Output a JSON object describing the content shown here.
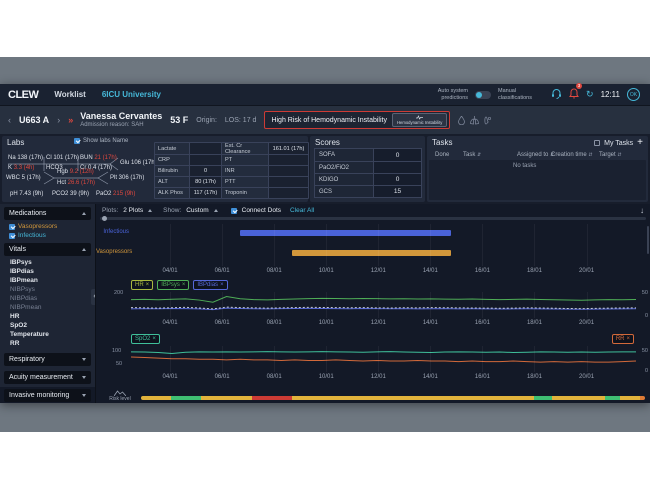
{
  "ui": {
    "close": "×",
    "caret": "^",
    "chev_left": "‹",
    "chev_right": "›",
    "dbl_chev": "»",
    "plus": "+",
    "download": "↓",
    "refresh": "↻",
    "collapse": "‹"
  },
  "navbar": {
    "logo": "CLEW",
    "worklist": "Worklist",
    "unit": "6ICU University",
    "auto_toggle": "Auto system predictions",
    "manual_toggle": "Manual classifications",
    "bell_badge": "3",
    "time": "12:11",
    "avatar": "OK"
  },
  "patient": {
    "bed": "U663 A",
    "name": "Vanessa Cervantes",
    "age_sex": "53 F",
    "admission": "Admission reason: SAH",
    "origin_label": "Origin:",
    "los": "LOS: 17 d",
    "risk_banner": "High Risk of Hemodynamic Instability",
    "risk_button": "Hemodynamic Instability"
  },
  "labs": {
    "title": "Labs",
    "show_labs_label": "Show labs Name",
    "fishbone": {
      "na": "Na 138 (17h)",
      "cl": "Cl 101 (17h)",
      "bun_label": "BUN",
      "bun_value": "21 (17h)",
      "glu": "Glu 106 (17h)",
      "k_label": "K",
      "k_value": "3.3 (4h)",
      "hco3": "HCO3",
      "cr": "Cr 0.4 (17h)",
      "wbc": "WBC 5 (17h)",
      "hgb_label": "Hgb",
      "hgb_value": "9.2 (12h)",
      "hct_label": "Hct",
      "hct_value": "26.6 (17h)",
      "plt": "Plt 306 (17h)",
      "ph": "pH 7.43 (9h)",
      "pco2": "PCO2 39 (9h)",
      "pao2_label": "PaO2",
      "pao2_value": "215 (9h)"
    },
    "table1": [
      {
        "label": "Lactate",
        "value": ""
      },
      {
        "label": "CRP",
        "value": ""
      },
      {
        "label": "Bilirubin",
        "value": "0",
        "cls": "red"
      },
      {
        "label": "ALT",
        "value": "80 (17h)",
        "cls": "red"
      },
      {
        "label": "ALK Phos",
        "value": "117 (17h)"
      }
    ],
    "table2": [
      {
        "label": "Est. Cr Clearance",
        "value": "161.01 (17h)",
        "cls": "red"
      },
      {
        "label": "PT",
        "value": ""
      },
      {
        "label": "INR",
        "value": ""
      },
      {
        "label": "PTT",
        "value": ""
      },
      {
        "label": "Troponin",
        "value": ""
      }
    ]
  },
  "scores": {
    "title": "Scores",
    "rows": [
      {
        "label": "SOFA",
        "value": "0"
      },
      {
        "label": "PaO2/FiO2",
        "value": ""
      },
      {
        "label": "KDIGO",
        "value": "0",
        "cls": "red"
      },
      {
        "label": "GCS",
        "value": "15"
      }
    ]
  },
  "tasks": {
    "title": "Tasks",
    "my_tasks_label": "My Tasks",
    "add_label": "+",
    "columns": [
      {
        "label": "Done"
      },
      {
        "label": "Task",
        "sort": "⇵"
      },
      {
        "label": "Assigned to",
        "sort": "⇵"
      },
      {
        "label": "Creation time",
        "sort": "⇵"
      },
      {
        "label": "Target",
        "sort": "⇵"
      }
    ],
    "empty": "No tasks"
  },
  "sidebar": {
    "medications_label": "Medications",
    "meds": [
      {
        "label": "Vasopressors",
        "cls": "orange"
      },
      {
        "label": "Infectious",
        "cls": "blue"
      }
    ],
    "vitals_label": "Vitals",
    "vitals": [
      {
        "label": "IBPsys"
      },
      {
        "label": "IBPdias"
      },
      {
        "label": "IBPmean"
      },
      {
        "label": "NIBPsys",
        "cls": "dim"
      },
      {
        "label": "NIBPdias",
        "cls": "dim"
      },
      {
        "label": "NIBPmean",
        "cls": "dim"
      },
      {
        "label": "HR"
      },
      {
        "label": "SpO2"
      },
      {
        "label": "Temperature"
      },
      {
        "label": "RR"
      }
    ],
    "collapsed": [
      {
        "label": "Respiratory"
      },
      {
        "label": "Acuity measurement"
      },
      {
        "label": "Invasive monitoring"
      }
    ]
  },
  "toolbar": {
    "plots_label": "Plots:",
    "plots_value": "2 Plots",
    "show_label": "Show:",
    "show_value": "Custom",
    "connect_label": "Connect Dots",
    "clear_label": "Clear All"
  },
  "risk": {
    "label": "Risk level",
    "segments": [
      {
        "color": "#e2b33c",
        "w": 6
      },
      {
        "color": "#3fbf72",
        "w": 6
      },
      {
        "color": "#e2b33c",
        "w": 10
      },
      {
        "color": "#cd3b35",
        "w": 8
      },
      {
        "color": "#e2b33c",
        "w": 48
      },
      {
        "color": "#3fbf72",
        "w": 3.5
      },
      {
        "color": "#e2b33c",
        "w": 10.5
      },
      {
        "color": "#3fbf72",
        "w": 3
      },
      {
        "color": "#e2b33c",
        "w": 4
      },
      {
        "color": "#de7b35",
        "w": 1
      }
    ]
  },
  "chart_data": {
    "type": "multi",
    "domain": {
      "day_min": 2.5,
      "day_max": 21.9
    },
    "x_ticks": [
      {
        "d": 4,
        "label": "04/01"
      },
      {
        "d": 6,
        "label": "06/01"
      },
      {
        "d": 8,
        "label": "08/01"
      },
      {
        "d": 10,
        "label": "10/01"
      },
      {
        "d": 12,
        "label": "12/01"
      },
      {
        "d": 14,
        "label": "14/01"
      },
      {
        "d": 16,
        "label": "16/01"
      },
      {
        "d": 18,
        "label": "18/01"
      },
      {
        "d": 20,
        "label": "20/01"
      }
    ],
    "med_timeline": {
      "type": "timeline",
      "rows": [
        {
          "name": "Infectious",
          "color": "#4a63d8",
          "start_day": 6.7,
          "end_day": 14.8
        },
        {
          "name": "Vasopressors",
          "color": "#d2973b",
          "start_day": 8.7,
          "end_day": 14.8
        }
      ]
    },
    "vitals": {
      "type": "line",
      "y_left": [
        "200"
      ],
      "y_right": [
        "50",
        "0"
      ],
      "chips": [
        {
          "label": "HR",
          "color": "#aab83f"
        },
        {
          "label": "IBPsys",
          "color": "#4fae57"
        },
        {
          "label": "IBPdias",
          "color": "#5668d8"
        }
      ],
      "series": [
        {
          "name": "IBPsys",
          "color": "#4fae57",
          "ylim": [
            0,
            200
          ],
          "values": [
            141,
            143,
            140,
            144,
            147,
            138,
            121,
            165,
            148,
            141,
            139,
            143,
            146,
            149,
            151,
            150,
            148,
            150,
            149,
            147,
            148,
            146,
            147,
            145,
            144,
            146,
            143,
            141,
            143,
            145,
            142,
            140,
            138,
            137,
            139,
            141,
            140,
            142
          ]
        },
        {
          "name": "IBPdias",
          "color": "#5668d8",
          "ylim": [
            0,
            200
          ],
          "values": [
            70,
            72,
            71,
            73,
            72,
            70,
            64,
            76,
            73,
            71,
            70,
            72,
            73,
            74,
            73,
            72,
            71,
            73,
            72,
            71,
            72,
            70,
            71,
            72,
            70,
            71,
            70,
            69,
            70,
            71,
            70,
            69,
            68,
            67,
            68,
            69,
            70,
            71
          ]
        },
        {
          "name": "HR",
          "color": "#c7cbd3",
          "dash": true,
          "ylim": [
            0,
            200
          ],
          "values": [
            80,
            78,
            76,
            79,
            82,
            77,
            70,
            84,
            80,
            78,
            76,
            78,
            80,
            82,
            81,
            80,
            79,
            80,
            78,
            77,
            79,
            78,
            80,
            79,
            78,
            77,
            76,
            75,
            76,
            78,
            77,
            75,
            73,
            72,
            74,
            76,
            77,
            78
          ]
        }
      ]
    },
    "oxy": {
      "type": "line",
      "y_left": [
        "100",
        "50"
      ],
      "y_right": [
        "50",
        "0"
      ],
      "chip_left": {
        "label": "SpO2",
        "color": "#3fbf9a"
      },
      "chip_right": {
        "label": "RR",
        "color": "#d2693a"
      },
      "series": [
        {
          "name": "SpO2",
          "color": "#3fbf9a",
          "ylim": [
            0,
            125
          ],
          "values": [
            97,
            96,
            94,
            89,
            95,
            97,
            96,
            97,
            96,
            97,
            98,
            97,
            96,
            97,
            98,
            97,
            96,
            95,
            97,
            98,
            96,
            95,
            94,
            96,
            97,
            96,
            95,
            96,
            94,
            95,
            97,
            96,
            95,
            96,
            95,
            96,
            97,
            97
          ]
        },
        {
          "name": "RR",
          "color": "#d2693a",
          "ylim": [
            5,
            50
          ],
          "values": [
            31,
            30,
            29,
            28,
            28,
            27,
            27,
            26,
            27,
            26,
            26,
            25,
            26,
            25,
            25,
            26,
            25,
            24,
            25,
            24,
            24,
            25,
            24,
            24,
            23,
            24,
            23,
            23,
            24,
            23,
            22,
            23,
            22,
            23,
            22,
            22,
            23,
            24
          ]
        }
      ]
    }
  }
}
